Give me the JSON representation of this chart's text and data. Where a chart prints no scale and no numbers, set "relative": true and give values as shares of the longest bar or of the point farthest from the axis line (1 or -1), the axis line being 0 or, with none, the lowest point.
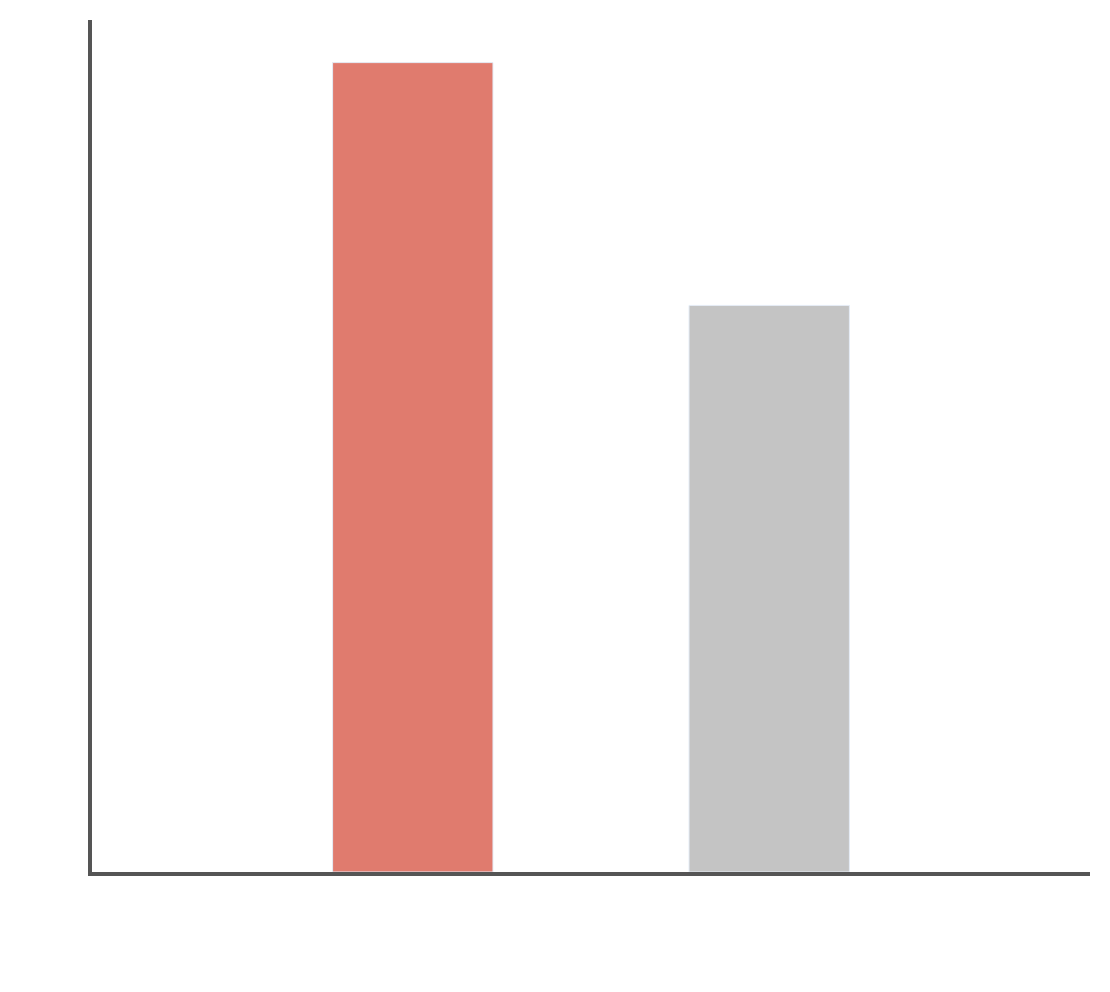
{
  "chart_data": {
    "type": "bar",
    "relative": true,
    "categories": [
      null,
      null
    ],
    "values": [
      1,
      0.7
    ],
    "colors": [
      "#e07b6e",
      "#c4c4c4"
    ]
  }
}
